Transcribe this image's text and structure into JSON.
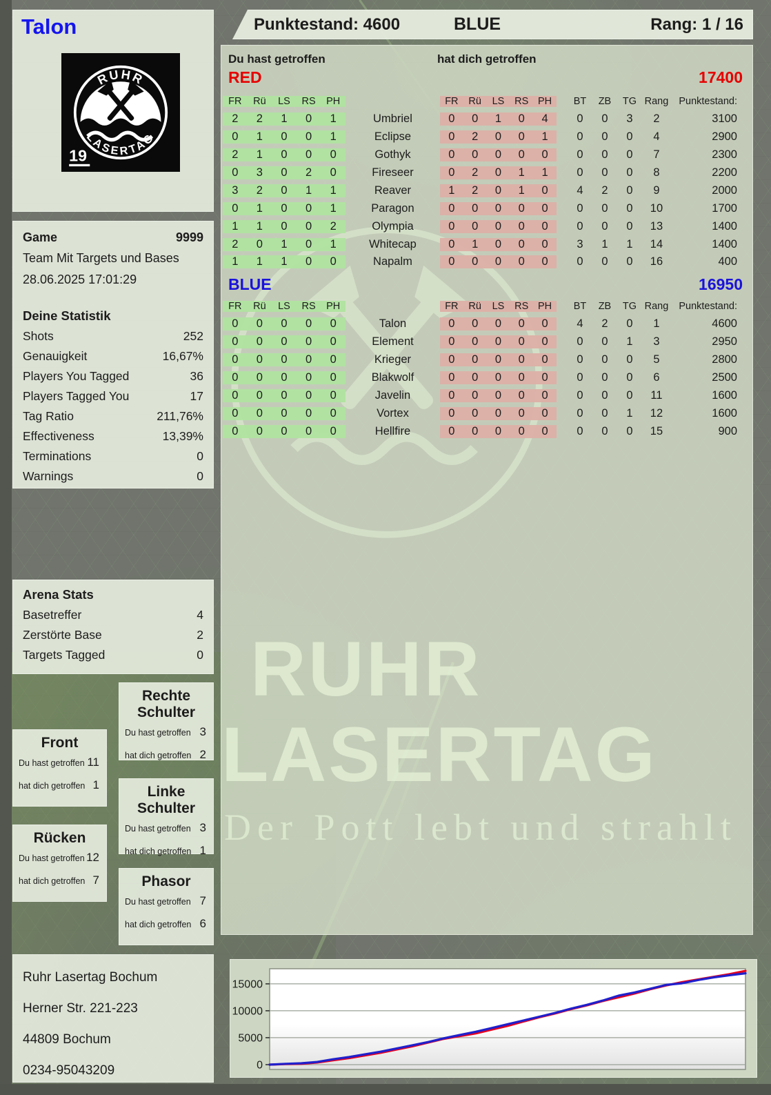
{
  "player": {
    "name": "Talon",
    "badge": "19",
    "logo_arc_top": "RUHR",
    "logo_arc_bottom": "LASERTAG"
  },
  "header": {
    "score_label": "Punktestand: 4600",
    "team": "BLUE",
    "rank_label": "Rang: 1 / 16"
  },
  "columns": {
    "you_hit": "Du hast getroffen",
    "hit_you": "hat dich getroffen",
    "body": [
      "FR",
      "Rü",
      "LS",
      "RS",
      "PH"
    ],
    "extra": [
      "BT",
      "ZB",
      "TG",
      "Rang",
      "Punktestand:"
    ]
  },
  "teams": [
    {
      "name": "RED",
      "score": "17400",
      "color": "#e60000",
      "rows": [
        {
          "name": "Umbriel",
          "you": [
            2,
            2,
            1,
            0,
            1
          ],
          "them": [
            0,
            0,
            1,
            0,
            4
          ],
          "bt": 0,
          "zb": 0,
          "tg": 3,
          "rang": 2,
          "punkte": 3100
        },
        {
          "name": "Eclipse",
          "you": [
            0,
            1,
            0,
            0,
            1
          ],
          "them": [
            0,
            2,
            0,
            0,
            1
          ],
          "bt": 0,
          "zb": 0,
          "tg": 0,
          "rang": 4,
          "punkte": 2900
        },
        {
          "name": "Gothyk",
          "you": [
            2,
            1,
            0,
            0,
            0
          ],
          "them": [
            0,
            0,
            0,
            0,
            0
          ],
          "bt": 0,
          "zb": 0,
          "tg": 0,
          "rang": 7,
          "punkte": 2300
        },
        {
          "name": "Fireseer",
          "you": [
            0,
            3,
            0,
            2,
            0
          ],
          "them": [
            0,
            2,
            0,
            1,
            1
          ],
          "bt": 0,
          "zb": 0,
          "tg": 0,
          "rang": 8,
          "punkte": 2200
        },
        {
          "name": "Reaver",
          "you": [
            3,
            2,
            0,
            1,
            1
          ],
          "them": [
            1,
            2,
            0,
            1,
            0
          ],
          "bt": 4,
          "zb": 2,
          "tg": 0,
          "rang": 9,
          "punkte": 2000
        },
        {
          "name": "Paragon",
          "you": [
            0,
            1,
            0,
            0,
            1
          ],
          "them": [
            0,
            0,
            0,
            0,
            0
          ],
          "bt": 0,
          "zb": 0,
          "tg": 0,
          "rang": 10,
          "punkte": 1700
        },
        {
          "name": "Olympia",
          "you": [
            1,
            1,
            0,
            0,
            2
          ],
          "them": [
            0,
            0,
            0,
            0,
            0
          ],
          "bt": 0,
          "zb": 0,
          "tg": 0,
          "rang": 13,
          "punkte": 1400
        },
        {
          "name": "Whitecap",
          "you": [
            2,
            0,
            1,
            0,
            1
          ],
          "them": [
            0,
            1,
            0,
            0,
            0
          ],
          "bt": 3,
          "zb": 1,
          "tg": 1,
          "rang": 14,
          "punkte": 1400
        },
        {
          "name": "Napalm",
          "you": [
            1,
            1,
            1,
            0,
            0
          ],
          "them": [
            0,
            0,
            0,
            0,
            0
          ],
          "bt": 0,
          "zb": 0,
          "tg": 0,
          "rang": 16,
          "punkte": 400
        }
      ]
    },
    {
      "name": "BLUE",
      "score": "16950",
      "color": "#1a12dc",
      "rows": [
        {
          "name": "Talon",
          "you": [
            0,
            0,
            0,
            0,
            0
          ],
          "them": [
            0,
            0,
            0,
            0,
            0
          ],
          "bt": 4,
          "zb": 2,
          "tg": 0,
          "rang": 1,
          "punkte": 4600
        },
        {
          "name": "Element",
          "you": [
            0,
            0,
            0,
            0,
            0
          ],
          "them": [
            0,
            0,
            0,
            0,
            0
          ],
          "bt": 0,
          "zb": 0,
          "tg": 1,
          "rang": 3,
          "punkte": 2950
        },
        {
          "name": "Krieger",
          "you": [
            0,
            0,
            0,
            0,
            0
          ],
          "them": [
            0,
            0,
            0,
            0,
            0
          ],
          "bt": 0,
          "zb": 0,
          "tg": 0,
          "rang": 5,
          "punkte": 2800
        },
        {
          "name": "Blakwolf",
          "you": [
            0,
            0,
            0,
            0,
            0
          ],
          "them": [
            0,
            0,
            0,
            0,
            0
          ],
          "bt": 0,
          "zb": 0,
          "tg": 0,
          "rang": 6,
          "punkte": 2500
        },
        {
          "name": "Javelin",
          "you": [
            0,
            0,
            0,
            0,
            0
          ],
          "them": [
            0,
            0,
            0,
            0,
            0
          ],
          "bt": 0,
          "zb": 0,
          "tg": 0,
          "rang": 11,
          "punkte": 1600
        },
        {
          "name": "Vortex",
          "you": [
            0,
            0,
            0,
            0,
            0
          ],
          "them": [
            0,
            0,
            0,
            0,
            0
          ],
          "bt": 0,
          "zb": 0,
          "tg": 1,
          "rang": 12,
          "punkte": 1600
        },
        {
          "name": "Hellfire",
          "you": [
            0,
            0,
            0,
            0,
            0
          ],
          "them": [
            0,
            0,
            0,
            0,
            0
          ],
          "bt": 0,
          "zb": 0,
          "tg": 0,
          "rang": 15,
          "punkte": 900
        }
      ]
    }
  ],
  "game_info": {
    "label": "Game",
    "number": "9999",
    "mode": "Team Mit Targets und Bases",
    "datetime": "28.06.2025 17:01:29"
  },
  "your_stats": {
    "title": "Deine Statistik",
    "rows": [
      [
        "Shots",
        "252"
      ],
      [
        "Genauigkeit",
        "16,67%"
      ],
      [
        "Players You Tagged",
        "36"
      ],
      [
        "Players Tagged You",
        "17"
      ],
      [
        "Tag Ratio",
        "211,76%"
      ],
      [
        "Effectiveness",
        "13,39%"
      ],
      [
        "Terminations",
        "0"
      ],
      [
        "Warnings",
        "0"
      ]
    ]
  },
  "arena_stats": {
    "title": "Arena Stats",
    "rows": [
      [
        "Basetreffer",
        "4"
      ],
      [
        "Zerstörte Base",
        "2"
      ],
      [
        "Targets Tagged",
        "0"
      ]
    ]
  },
  "hit_labels": {
    "you": "Du hast getroffen",
    "them": "hat dich getroffen"
  },
  "body_parts": [
    {
      "title": "Front",
      "you": "11",
      "them": "1"
    },
    {
      "title": "Rechte Schulter",
      "you": "3",
      "them": "2"
    },
    {
      "title": "Rücken",
      "you": "12",
      "them": "7"
    },
    {
      "title": "Linke Schulter",
      "you": "3",
      "them": "1"
    },
    {
      "title": "Phasor",
      "you": "7",
      "them": "6"
    }
  ],
  "address": {
    "lines": [
      "Ruhr Lasertag Bochum",
      "Herner Str. 221-223",
      "44809 Bochum",
      "0234-95043209"
    ]
  },
  "watermark": {
    "line1": "RUHR",
    "line2": "LASERTAG",
    "slogan": "Der Pott lebt und strahlt"
  },
  "chart_data": {
    "type": "line",
    "title": "",
    "ylabel_ticks": [
      "0",
      "5000",
      "10000",
      "15000"
    ],
    "ylim": [
      0,
      17800
    ],
    "grid": true,
    "legend": "none",
    "series": [
      {
        "name": "RED",
        "color": "#e8001c",
        "values": [
          0,
          100,
          150,
          400,
          800,
          1200,
          1700,
          2200,
          2800,
          3400,
          4100,
          4800,
          5300,
          5800,
          6500,
          7200,
          8000,
          8800,
          9500,
          10300,
          11000,
          11800,
          12500,
          13200,
          14000,
          14700,
          15300,
          15800,
          16300,
          16800,
          17400
        ]
      },
      {
        "name": "BLUE",
        "color": "#2020cc",
        "values": [
          0,
          150,
          250,
          500,
          1000,
          1400,
          1900,
          2400,
          3000,
          3600,
          4200,
          4900,
          5500,
          6100,
          6800,
          7500,
          8200,
          8900,
          9600,
          10400,
          11100,
          11900,
          12800,
          13400,
          14100,
          14800,
          15100,
          15700,
          16200,
          16600,
          16950
        ]
      }
    ]
  }
}
